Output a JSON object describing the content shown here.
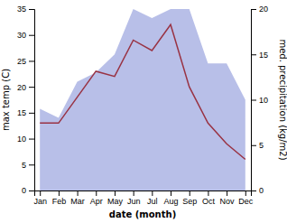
{
  "chart_data": {
    "type": "line",
    "categories": [
      "Jan",
      "Feb",
      "Mar",
      "Apr",
      "May",
      "Jun",
      "Jul",
      "Aug",
      "Sep",
      "Oct",
      "Nov",
      "Dec"
    ],
    "series": [
      {
        "type": "area",
        "color": "#b8bfe8",
        "axis": "y2",
        "values": [
          9,
          8,
          12,
          13,
          15,
          20,
          19,
          20,
          20,
          14,
          14,
          10
        ]
      },
      {
        "type": "line",
        "color": "#993344",
        "values": [
          13,
          13,
          18,
          23,
          22,
          29,
          27,
          32,
          20,
          13,
          9,
          6
        ]
      }
    ],
    "xlabel": "date (month)",
    "ylabel": "max temp (C)",
    "y2label": "med. precipitation (kg/m2)",
    "ylim": [
      0,
      35
    ],
    "yticks": [
      0,
      5,
      10,
      15,
      20,
      25,
      30,
      35
    ],
    "y2lim": [
      0,
      20
    ],
    "y2ticks": [
      0,
      5,
      10,
      15,
      20
    ],
    "grid": false
  }
}
